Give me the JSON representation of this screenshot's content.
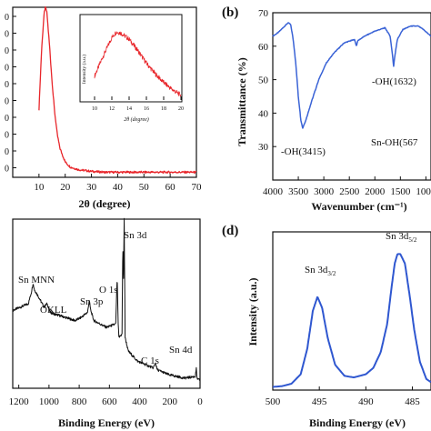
{
  "colors": {
    "xrd": "#e8262b",
    "ftir": "#3a63d6",
    "xps": "#111111",
    "xps_hr": "#2f57d0",
    "axis": "#111111"
  },
  "panels": {
    "a": {
      "label": "",
      "xlabel": "2θ (degree)",
      "ylabel": "",
      "x_ticks": [
        "10",
        "20",
        "30",
        "40",
        "50",
        "60",
        "70"
      ],
      "y_ticks": [
        "0",
        "0",
        "0",
        "0",
        "0",
        "0",
        "0",
        "0",
        "0",
        "0"
      ],
      "inset": {
        "xlabel": "2θ (degree)",
        "ylabel": "Intensity (a.u.)",
        "x_ticks": [
          "10",
          "12",
          "14",
          "16",
          "18",
          "20"
        ]
      }
    },
    "b": {
      "label": "(b)",
      "xlabel": "Wavenumber (cm⁻¹)",
      "ylabel": "Transmittance (%)",
      "x_ticks": [
        "4000",
        "3500",
        "3000",
        "2500",
        "2000",
        "1500",
        "1000"
      ],
      "y_ticks": [
        "30",
        "40",
        "50",
        "60",
        "70"
      ],
      "annotations": [
        "-OH(3415)",
        "-OH(1632)",
        "Sn-OH(567"
      ]
    },
    "c": {
      "label": "",
      "xlabel": "Binding Energy (eV)",
      "ylabel": "",
      "x_ticks": [
        "1200",
        "1000",
        "800",
        "600",
        "400",
        "200",
        "0"
      ],
      "annotations": [
        "Sn MNN",
        "OKLL",
        "Sn 3p",
        "O 1s",
        "Sn 3d",
        "C 1s",
        "Sn 4d"
      ]
    },
    "d": {
      "label": "(d)",
      "xlabel": "Binding Energy (eV)",
      "ylabel": "Intensity (a.u.)",
      "x_ticks": [
        "500",
        "495",
        "490",
        "485"
      ],
      "annotations": [
        "Sn 3d3/2",
        "Sn 3d5/2"
      ]
    }
  },
  "chart_data": [
    {
      "panel": "a",
      "type": "line",
      "title": "",
      "xlabel": "2θ (degree)",
      "ylabel": "",
      "xlim": [
        0,
        70
      ],
      "ylim": [
        0,
        1
      ],
      "series": [
        {
          "x": [
            10,
            11,
            12,
            12.5,
            13,
            14,
            15,
            16,
            17,
            18,
            20,
            22,
            25,
            30,
            35,
            40,
            50,
            60,
            70
          ],
          "y": [
            0.4,
            0.75,
            0.97,
            1.0,
            0.97,
            0.78,
            0.56,
            0.38,
            0.25,
            0.17,
            0.09,
            0.06,
            0.045,
            0.035,
            0.03,
            0.03,
            0.03,
            0.03,
            0.03
          ]
        }
      ]
    },
    {
      "panel": "a-inset",
      "type": "line",
      "title": "",
      "xlabel": "2θ (degree)",
      "ylabel": "Intensity (a.u.)",
      "xlim": [
        10,
        20
      ],
      "ylim": [
        0,
        1
      ],
      "series": [
        {
          "x": [
            10,
            11,
            12,
            12.5,
            13,
            14,
            15,
            16,
            17,
            18,
            19,
            20
          ],
          "y": [
            0.3,
            0.55,
            0.78,
            0.85,
            0.84,
            0.76,
            0.62,
            0.46,
            0.33,
            0.22,
            0.13,
            0.06
          ]
        }
      ]
    },
    {
      "panel": "b",
      "type": "line",
      "title": "",
      "xlabel": "Wavenumber (cm⁻¹)",
      "ylabel": "Transmittance (%)",
      "xlim": [
        4000,
        900
      ],
      "ylim": [
        20,
        70
      ],
      "series": [
        {
          "x": [
            4000,
            3900,
            3800,
            3700,
            3650,
            3600,
            3550,
            3500,
            3450,
            3415,
            3350,
            3250,
            3100,
            2950,
            2800,
            2600,
            2400,
            2360,
            2340,
            2300,
            2200,
            2000,
            1800,
            1700,
            1660,
            1632,
            1610,
            1560,
            1450,
            1300,
            1150,
            1050,
            900
          ],
          "y": [
            63,
            64,
            65.5,
            67,
            66.5,
            62,
            55,
            45,
            38,
            35.5,
            38,
            43,
            50,
            55,
            58,
            61,
            62,
            60,
            61.5,
            62,
            63,
            64.5,
            65.5,
            63,
            58,
            54,
            57,
            62,
            65,
            66,
            66,
            65,
            63
          ]
        }
      ]
    },
    {
      "panel": "c",
      "type": "line",
      "title": "",
      "xlabel": "Binding Energy (eV)",
      "ylabel": "",
      "xlim": [
        1200,
        0
      ],
      "ylim": [
        0,
        1
      ],
      "series": [
        {
          "x": [
            1200,
            1150,
            1100,
            1080,
            1070,
            1060,
            1040,
            1000,
            980,
            960,
            940,
            900,
            800,
            760,
            720,
            710,
            700,
            680,
            600,
            540,
            531,
            525,
            520,
            500,
            495,
            490,
            486,
            480,
            460,
            400,
            300,
            285,
            275,
            200,
            100,
            30,
            24,
            20,
            10,
            0
          ],
          "y": [
            0.46,
            0.48,
            0.5,
            0.57,
            0.62,
            0.58,
            0.55,
            0.48,
            0.5,
            0.45,
            0.44,
            0.43,
            0.4,
            0.42,
            0.45,
            0.52,
            0.46,
            0.4,
            0.36,
            0.38,
            0.66,
            0.4,
            0.3,
            0.32,
            0.85,
            0.65,
            1.0,
            0.3,
            0.22,
            0.16,
            0.12,
            0.15,
            0.11,
            0.08,
            0.06,
            0.07,
            0.12,
            0.06,
            0.05,
            0.05
          ]
        }
      ]
    },
    {
      "panel": "d",
      "type": "line",
      "title": "",
      "xlabel": "Binding Energy (eV)",
      "ylabel": "Intensity (a.u.)",
      "xlim": [
        500,
        483
      ],
      "ylim": [
        0,
        1
      ],
      "series": [
        {
          "x": [
            500,
            499,
            498,
            497,
            496.3,
            495.7,
            495.2,
            494.7,
            494.1,
            493.3,
            492.3,
            491.3,
            490,
            489.2,
            488.4,
            487.7,
            487.3,
            486.9,
            486.6,
            486.3,
            485.8,
            485.3,
            484.8,
            484.2,
            483.5,
            483
          ],
          "y": [
            0.02,
            0.025,
            0.04,
            0.1,
            0.26,
            0.5,
            0.59,
            0.52,
            0.33,
            0.16,
            0.09,
            0.08,
            0.1,
            0.14,
            0.24,
            0.42,
            0.62,
            0.8,
            0.86,
            0.86,
            0.8,
            0.6,
            0.38,
            0.18,
            0.07,
            0.05
          ]
        }
      ]
    }
  ]
}
